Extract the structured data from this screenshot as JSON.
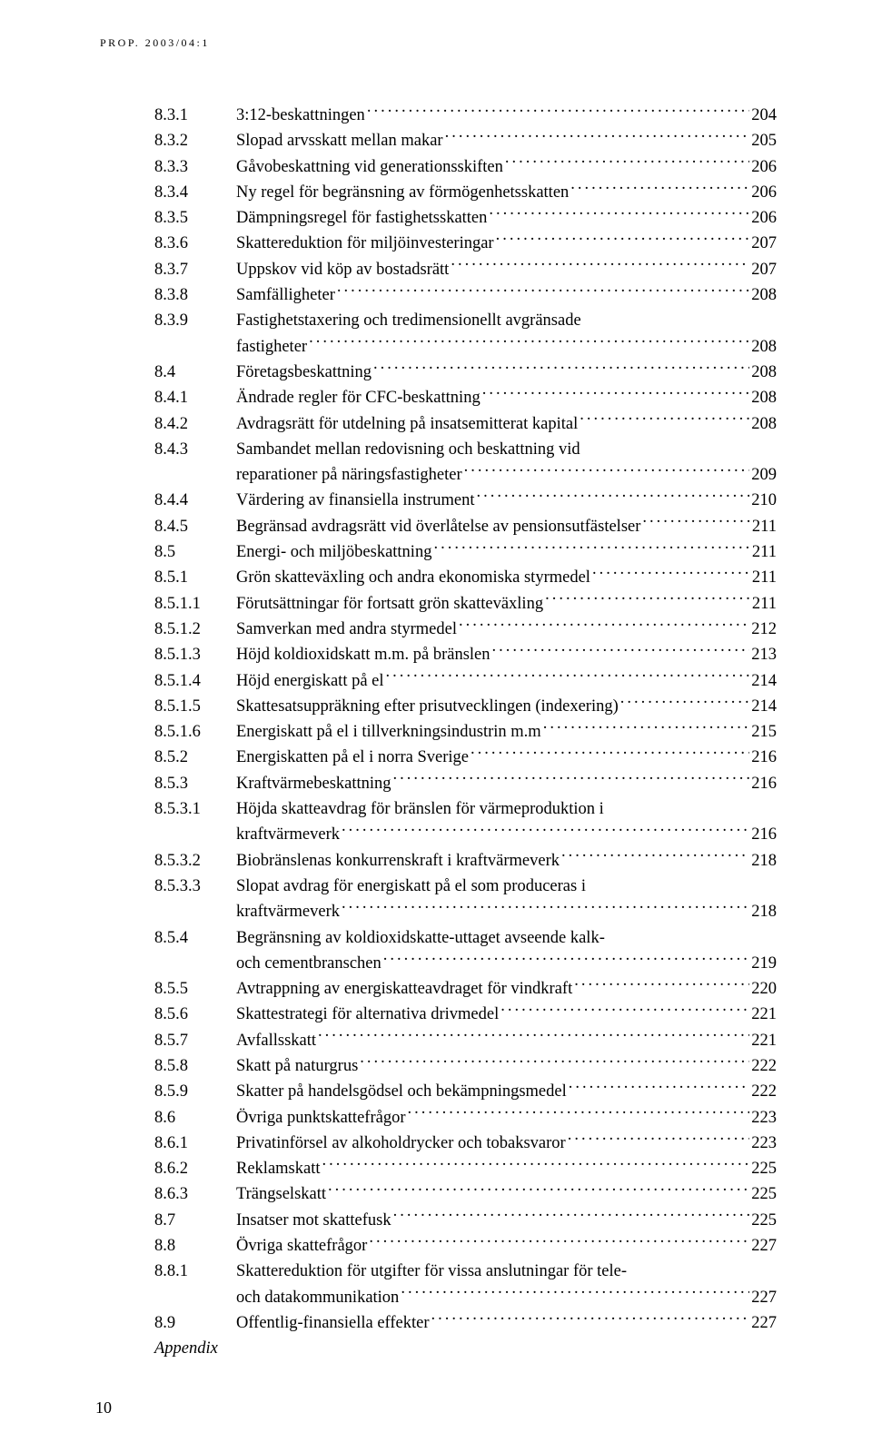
{
  "header": "PROP. 2003/04:1",
  "footer_page_number": "10",
  "appendix_label": "Appendix",
  "toc": [
    {
      "num": "8.3.1",
      "title": "3:12-beskattningen",
      "page": "204"
    },
    {
      "num": "8.3.2",
      "title": "Slopad arvsskatt mellan makar",
      "page": "205"
    },
    {
      "num": "8.3.3",
      "title": "Gåvobeskattning vid generationsskiften",
      "page": "206"
    },
    {
      "num": "8.3.4",
      "title": "Ny regel för begränsning av förmögenhetsskatten",
      "page": "206"
    },
    {
      "num": "8.3.5",
      "title": "Dämpningsregel för fastighetsskatten",
      "page": "206"
    },
    {
      "num": "8.3.6",
      "title": "Skattereduktion för miljöinvesteringar",
      "page": "207"
    },
    {
      "num": "8.3.7",
      "title": "Uppskov vid köp av bostadsrätt",
      "page": "207"
    },
    {
      "num": "8.3.8",
      "title": "Samfälligheter",
      "page": "208"
    },
    {
      "num": "8.3.9",
      "title": "Fastighetstaxering och tredimensionellt avgränsade",
      "cont": "fastigheter",
      "page": "208"
    },
    {
      "num": "8.4",
      "title": "Företagsbeskattning",
      "page": "208"
    },
    {
      "num": "8.4.1",
      "title": "Ändrade regler för CFC-beskattning",
      "page": "208"
    },
    {
      "num": "8.4.2",
      "title": "Avdragsrätt för utdelning på insatsemitterat kapital",
      "page": "208"
    },
    {
      "num": "8.4.3",
      "title": "Sambandet mellan redovisning och beskattning vid",
      "cont": "reparationer på näringsfastigheter",
      "page": "209"
    },
    {
      "num": "8.4.4",
      "title": "Värdering av finansiella instrument",
      "page": "210"
    },
    {
      "num": "8.4.5",
      "title": "Begränsad avdragsrätt vid överlåtelse av pensionsutfästelser",
      "page": "211"
    },
    {
      "num": "8.5",
      "title": "Energi- och miljöbeskattning",
      "page": "211"
    },
    {
      "num": "8.5.1",
      "title": "Grön skatteväxling och andra ekonomiska styrmedel",
      "page": "211"
    },
    {
      "num": "8.5.1.1",
      "title": "Förutsättningar för fortsatt grön skatteväxling",
      "page": "211"
    },
    {
      "num": "8.5.1.2",
      "title": "Samverkan med andra styrmedel",
      "page": "212"
    },
    {
      "num": "8.5.1.3",
      "title": "Höjd koldioxidskatt m.m. på bränslen",
      "page": "213"
    },
    {
      "num": "8.5.1.4",
      "title": "Höjd energiskatt på el",
      "page": "214"
    },
    {
      "num": "8.5.1.5",
      "title": "Skattesatsuppräkning efter prisutvecklingen (indexering)",
      "page": "214"
    },
    {
      "num": "8.5.1.6",
      "title": "Energiskatt på el i tillverkningsindustrin m.m",
      "page": "215"
    },
    {
      "num": "8.5.2",
      "title": "Energiskatten på el i norra Sverige",
      "page": "216"
    },
    {
      "num": "8.5.3",
      "title": "Kraftvärmebeskattning",
      "page": "216"
    },
    {
      "num": "8.5.3.1",
      "title": "Höjda skatteavdrag för bränslen för värmeproduktion i",
      "cont": "kraftvärmeverk",
      "page": "216"
    },
    {
      "num": "8.5.3.2",
      "title": "Biobränslenas konkurrenskraft i kraftvärmeverk",
      "page": "218"
    },
    {
      "num": "8.5.3.3",
      "title": "Slopat avdrag för energiskatt på el som produceras i",
      "cont": "kraftvärmeverk",
      "page": "218"
    },
    {
      "num": "8.5.4",
      "title": "Begränsning av koldioxidskatte-uttaget avseende kalk-",
      "cont": "och cementbranschen",
      "page": "219"
    },
    {
      "num": "8.5.5",
      "title": "Avtrappning av energiskatteavdraget för vindkraft",
      "page": "220"
    },
    {
      "num": "8.5.6",
      "title": "Skattestrategi för alternativa drivmedel",
      "page": "221"
    },
    {
      "num": "8.5.7",
      "title": "Avfallsskatt",
      "page": "221"
    },
    {
      "num": "8.5.8",
      "title": "Skatt på naturgrus",
      "page": "222"
    },
    {
      "num": "8.5.9",
      "title": "Skatter på handelsgödsel och bekämpningsmedel",
      "page": "222"
    },
    {
      "num": "8.6",
      "title": "Övriga punktskattefrågor",
      "page": "223"
    },
    {
      "num": "8.6.1",
      "title": "Privatinförsel av alkoholdrycker och tobaksvaror",
      "page": "223"
    },
    {
      "num": "8.6.2",
      "title": "Reklamskatt",
      "page": "225"
    },
    {
      "num": "8.6.3",
      "title": "Trängselskatt",
      "page": "225"
    },
    {
      "num": "8.7",
      "title": "Insatser mot skattefusk",
      "page": "225"
    },
    {
      "num": "8.8",
      "title": "Övriga skattefrågor",
      "page": "227"
    },
    {
      "num": "8.8.1",
      "title": "Skattereduktion för utgifter för vissa anslutningar för tele-",
      "cont": "och datakommunikation",
      "page": "227"
    },
    {
      "num": "8.9",
      "title": "Offentlig-finansiella effekter",
      "page": "227"
    }
  ]
}
